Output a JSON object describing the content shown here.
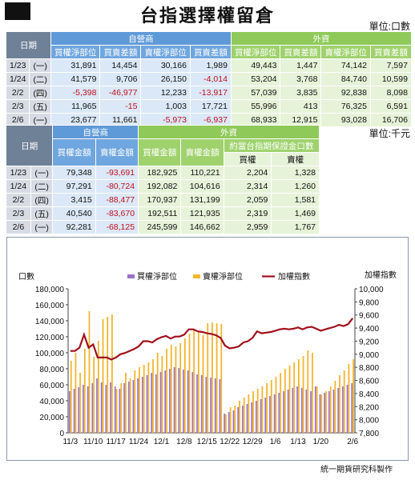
{
  "title": "台指選擇權留倉",
  "table1": {
    "unit": "單位:口數",
    "date_header": "日期",
    "dealer_header": "自營商",
    "foreign_header": "外資",
    "subheaders": [
      "買權淨部位",
      "買賣差額",
      "賣權淨部位",
      "買賣差額",
      "買權淨部位",
      "買賣差額",
      "賣權淨部位",
      "買賣差額"
    ],
    "rows": [
      {
        "date": "1/23",
        "wd": "(一)",
        "v": [
          "31,891",
          "14,454",
          "30,166",
          "1,989",
          "49,443",
          "1,447",
          "74,142",
          "7,597"
        ]
      },
      {
        "date": "1/24",
        "wd": "(二)",
        "v": [
          "41,579",
          "9,706",
          "26,150",
          "-4,014",
          "53,204",
          "3,768",
          "84,740",
          "10,599"
        ]
      },
      {
        "date": "2/2",
        "wd": "(四)",
        "v": [
          "-5,398",
          "-46,977",
          "12,233",
          "-13,917",
          "57,039",
          "3,835",
          "92,838",
          "8,098"
        ]
      },
      {
        "date": "2/3",
        "wd": "(五)",
        "v": [
          "11,965",
          "-15",
          "1,003",
          "17,721",
          "55,996",
          "413",
          "76,325",
          "6,591"
        ]
      },
      {
        "date": "2/6",
        "wd": "(一)",
        "v": [
          "23,677",
          "11,661",
          "-5,973",
          "-6,937",
          "68,933",
          "12,915",
          "93,028",
          "16,706"
        ]
      }
    ]
  },
  "table2": {
    "unit": "單位:千元",
    "date_header": "日期",
    "dealer_header": "自營商",
    "foreign_header": "外資",
    "subheaders": [
      "買權金額",
      "賣權金額",
      "買權金額",
      "賣權金額"
    ],
    "margin_header": "約當台指期保證金口數",
    "margin_sub": [
      "買權",
      "賣權"
    ],
    "rows": [
      {
        "date": "1/23",
        "wd": "(一)",
        "v": [
          "79,348",
          "-93,691",
          "182,925",
          "110,221",
          "2,204",
          "1,328"
        ]
      },
      {
        "date": "1/24",
        "wd": "(二)",
        "v": [
          "97,291",
          "-80,724",
          "192,082",
          "104,616",
          "2,314",
          "1,260"
        ]
      },
      {
        "date": "2/2",
        "wd": "(四)",
        "v": [
          "3,415",
          "-88,477",
          "170,937",
          "131,199",
          "2,059",
          "1,581"
        ]
      },
      {
        "date": "2/3",
        "wd": "(五)",
        "v": [
          "40,540",
          "-83,670",
          "192,511",
          "121,935",
          "2,319",
          "1,469"
        ]
      },
      {
        "date": "2/6",
        "wd": "(一)",
        "v": [
          "92,281",
          "-68,125",
          "245,599",
          "146,662",
          "2,959",
          "1,767"
        ]
      }
    ]
  },
  "chart_data": {
    "type": "bar",
    "ylabel_left": "口數",
    "ylabel_right": "加權指數",
    "ylim_left": [
      0,
      180000
    ],
    "ylim_right": [
      7800,
      10000
    ],
    "left_ticks": [
      "0",
      "20,000",
      "40,000",
      "60,000",
      "80,000",
      "100,000",
      "120,000",
      "140,000",
      "160,000",
      "180,000"
    ],
    "right_ticks": [
      "7,800",
      "8,000",
      "8,200",
      "8,400",
      "8,600",
      "8,800",
      "9,000",
      "9,200",
      "9,400",
      "9,600",
      "9,800",
      "10,000"
    ],
    "x_labels": [
      "11/3",
      "11/10",
      "11/17",
      "11/24",
      "12/1",
      "12/8",
      "12/15",
      "12/22",
      "12/29",
      "1/6",
      "1/13",
      "1/20",
      "2/6"
    ],
    "x_label_positions": [
      0,
      5,
      10,
      15,
      20,
      25,
      30,
      35,
      40,
      45,
      50,
      55,
      62
    ],
    "legend": [
      "買權淨部位",
      "賣權淨部位",
      "加權指數"
    ],
    "colors": {
      "call": "#9b72c9",
      "put": "#f2b630",
      "index": "#a0101c"
    },
    "series": [
      {
        "name": "買權淨部位",
        "values": [
          52000,
          55000,
          57000,
          60000,
          58000,
          62000,
          68000,
          63000,
          60000,
          63000,
          58000,
          55000,
          62000,
          64000,
          66000,
          68000,
          70000,
          72000,
          75000,
          73000,
          76000,
          78000,
          80000,
          82000,
          81000,
          79000,
          78000,
          76000,
          73000,
          72000,
          70000,
          69000,
          68000,
          67000,
          24000,
          26000,
          28000,
          32000,
          34000,
          36000,
          38000,
          40000,
          42000,
          44000,
          46000,
          48000,
          50000,
          52000,
          54000,
          56000,
          58000,
          56000,
          54000,
          52000,
          58000,
          48000,
          50000,
          52000,
          54000,
          56000,
          58000,
          60000,
          62000
        ]
      },
      {
        "name": "賣權淨部位",
        "values": [
          90000,
          100000,
          75000,
          105000,
          152000,
          95000,
          115000,
          142000,
          145000,
          148000,
          55000,
          62000,
          75000,
          68000,
          78000,
          82000,
          85000,
          88000,
          92000,
          100000,
          96000,
          105000,
          110000,
          108000,
          112000,
          118000,
          124000,
          130000,
          126000,
          122000,
          137000,
          138000,
          137000,
          136000,
          23000,
          32000,
          34000,
          40000,
          44000,
          48000,
          52000,
          55000,
          58000,
          62000,
          66000,
          70000,
          75000,
          80000,
          84000,
          88000,
          92000,
          96000,
          103000,
          100000,
          58000,
          48000,
          52000,
          58000,
          65000,
          72000,
          78000,
          86000,
          92000
        ]
      },
      {
        "name": "加權指數",
        "values": [
          9050,
          9050,
          9100,
          9300,
          9100,
          9150,
          8950,
          8950,
          8950,
          8920,
          8950,
          9000,
          9020,
          9050,
          9080,
          9120,
          9200,
          9200,
          9180,
          9230,
          9260,
          9280,
          9240,
          9270,
          9270,
          9300,
          9380,
          9380,
          9350,
          9340,
          9320,
          9310,
          9290,
          9250,
          9130,
          9090,
          9100,
          9120,
          9180,
          9200,
          9250,
          9350,
          9320,
          9330,
          9340,
          9360,
          9380,
          9390,
          9380,
          9390,
          9410,
          9380,
          9410,
          9420,
          9390,
          9360,
          9380,
          9400,
          9420,
          9450,
          9430,
          9460,
          9550
        ]
      }
    ]
  },
  "footer": "統一期貨研究科製作"
}
